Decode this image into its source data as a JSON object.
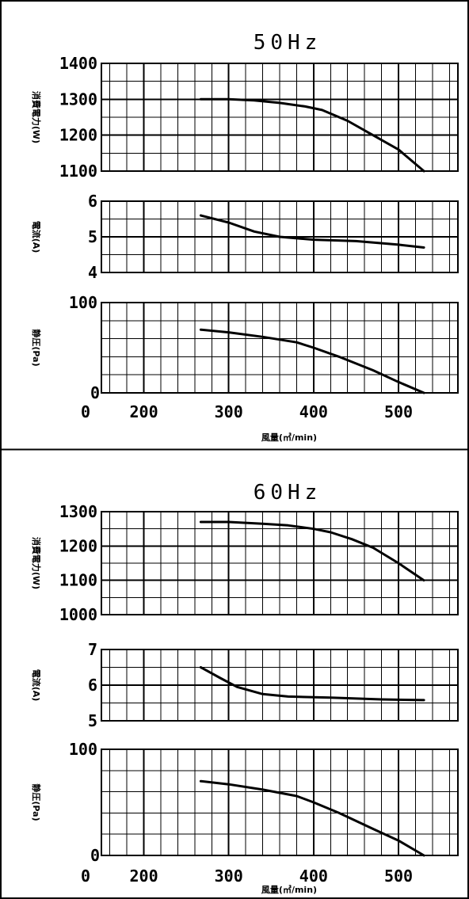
{
  "colors": {
    "ink": "#000000",
    "background": "#ffffff"
  },
  "chart_data": [
    {
      "type": "line",
      "title": "50Hz",
      "xlabel": "風量(㎥/min)",
      "xlim": [
        150,
        570
      ],
      "xticks": [
        200,
        300,
        400,
        500
      ],
      "x_origin_label": "0",
      "panels": [
        {
          "ylabel": "消費電力(W)",
          "ylim": [
            1100,
            1400
          ],
          "yticks": [
            1100,
            1200,
            1300,
            1400
          ],
          "series": [
            {
              "x": [
                267,
                300,
                330,
                360,
                390,
                410,
                440,
                470,
                500,
                530
              ],
              "y": [
                1300,
                1300,
                1297,
                1290,
                1280,
                1270,
                1240,
                1200,
                1160,
                1100
              ]
            }
          ]
        },
        {
          "ylabel": "電流(A)",
          "ylim": [
            4,
            6
          ],
          "yticks": [
            4,
            5,
            6
          ],
          "series": [
            {
              "x": [
                267,
                300,
                330,
                360,
                400,
                450,
                500,
                530
              ],
              "y": [
                5.6,
                5.4,
                5.15,
                5.0,
                4.92,
                4.88,
                4.78,
                4.7
              ]
            }
          ]
        },
        {
          "ylabel": "静圧(Pa)",
          "ylim": [
            0,
            100
          ],
          "yticks": [
            0,
            100
          ],
          "series": [
            {
              "x": [
                267,
                300,
                340,
                380,
                400,
                430,
                470,
                500,
                530
              ],
              "y": [
                70,
                67,
                62,
                56,
                50,
                40,
                25,
                12,
                0
              ]
            }
          ]
        }
      ]
    },
    {
      "type": "line",
      "title": "60Hz",
      "xlabel": "風量(㎥/min)",
      "xlim": [
        150,
        570
      ],
      "xticks": [
        200,
        300,
        400,
        500
      ],
      "x_origin_label": "0",
      "panels": [
        {
          "ylabel": "消費電力(W)",
          "ylim": [
            1000,
            1300
          ],
          "yticks": [
            1000,
            1100,
            1200,
            1300
          ],
          "series": [
            {
              "x": [
                267,
                300,
                340,
                370,
                400,
                420,
                445,
                470,
                500,
                530
              ],
              "y": [
                1270,
                1270,
                1265,
                1260,
                1250,
                1240,
                1220,
                1195,
                1150,
                1100
              ]
            }
          ]
        },
        {
          "ylabel": "電流(A)",
          "ylim": [
            5,
            7
          ],
          "yticks": [
            5,
            6,
            7
          ],
          "series": [
            {
              "x": [
                267,
                290,
                310,
                340,
                370,
                420,
                480,
                530
              ],
              "y": [
                6.5,
                6.2,
                5.95,
                5.75,
                5.68,
                5.65,
                5.6,
                5.58
              ]
            }
          ]
        },
        {
          "ylabel": "静圧(Pa)",
          "ylim": [
            0,
            100
          ],
          "yticks": [
            0,
            100
          ],
          "series": [
            {
              "x": [
                267,
                300,
                340,
                380,
                400,
                430,
                470,
                500,
                530
              ],
              "y": [
                70,
                67,
                62,
                56,
                50,
                40,
                25,
                14,
                0
              ]
            }
          ]
        }
      ]
    }
  ]
}
